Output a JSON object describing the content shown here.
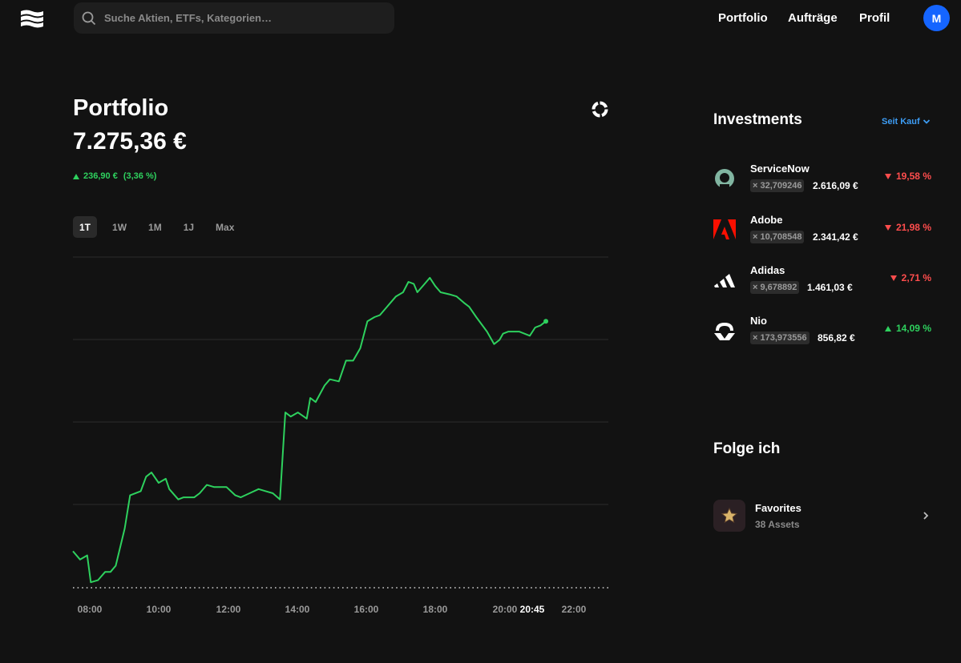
{
  "header": {
    "search_placeholder": "Suche Aktien, ETFs, Kategorien…",
    "nav": [
      "Portfolio",
      "Aufträge",
      "Profil"
    ],
    "avatar_initial": "M"
  },
  "portfolio": {
    "title": "Portfolio",
    "value": "7.275,36 €",
    "change_abs": "236,90 €",
    "change_pct": "(3,36 %)",
    "ranges": [
      "1T",
      "1W",
      "1M",
      "1J",
      "Max"
    ],
    "active_range": "1T"
  },
  "chart_data": {
    "type": "line",
    "xlabel": "",
    "ylabel": "",
    "x_ticks": [
      "08:00",
      "10:00",
      "12:00",
      "14:00",
      "16:00",
      "18:00",
      "20:00",
      "20:45",
      "22:00"
    ],
    "x_range_hours": [
      7.5,
      22.5
    ],
    "series": [
      {
        "color": "#2ed15e",
        "x": [
          7.5,
          7.7,
          7.9,
          8.0,
          8.2,
          8.4,
          8.55,
          8.7,
          8.95,
          9.1,
          9.4,
          9.55,
          9.7,
          9.9,
          10.1,
          10.2,
          10.45,
          10.6,
          10.9,
          11.05,
          11.25,
          11.45,
          11.8,
          12.05,
          12.2,
          12.45,
          12.7,
          12.9,
          13.1,
          13.3,
          13.45,
          13.6,
          13.8,
          14.05,
          14.15,
          14.3,
          14.55,
          14.7,
          14.95,
          15.15,
          15.35,
          15.55,
          15.75,
          15.95,
          16.1,
          16.3,
          16.55,
          16.75,
          16.9,
          17.05,
          17.15,
          17.35,
          17.5,
          17.65,
          17.8,
          18.05,
          18.25,
          18.45,
          18.6,
          18.8,
          19.1,
          19.3,
          19.45,
          19.55,
          19.7,
          19.8,
          20.0,
          20.3,
          20.45,
          20.6,
          20.75
        ],
        "y": [
          7103,
          7099,
          7101,
          7088,
          7089,
          7093,
          7093,
          7096,
          7114,
          7130,
          7132,
          7139,
          7141,
          7136,
          7138,
          7133,
          7128,
          7129,
          7129,
          7131,
          7135,
          7134,
          7134,
          7130,
          7129,
          7131,
          7133,
          7132,
          7131,
          7128,
          7170,
          7168,
          7170,
          7167,
          7177,
          7175,
          7183,
          7186,
          7185,
          7195,
          7195,
          7201,
          7214,
          7216,
          7217,
          7221,
          7226,
          7228,
          7233,
          7232,
          7228,
          7232,
          7235,
          7231,
          7228,
          7227,
          7226,
          7223,
          7221,
          7216,
          7209,
          7203,
          7205,
          7208,
          7209,
          7209,
          7209,
          7207,
          7211,
          7212,
          7214
        ],
        "last_point": {
          "x": 20.75,
          "y": 7214
        }
      }
    ],
    "ylim": [
      7085,
      7245
    ],
    "baseline_dotted": true,
    "grid": true
  },
  "investments": {
    "title": "Investments",
    "sort_label": "Seit Kauf",
    "holdings": [
      {
        "name": "ServiceNow",
        "qty": "× 32,709246",
        "amount": "2.616,09 €",
        "perf": "19,58 %",
        "dir": "down",
        "logo": "servicenow-logo"
      },
      {
        "name": "Adobe",
        "qty": "× 10,708548",
        "amount": "2.341,42 €",
        "perf": "21,98 %",
        "dir": "down",
        "logo": "adobe-logo"
      },
      {
        "name": "Adidas",
        "qty": "× 9,678892",
        "amount": "1.461,03 €",
        "perf": "2,71 %",
        "dir": "down",
        "logo": "adidas-logo"
      },
      {
        "name": "Nio",
        "qty": "× 173,973556",
        "amount": "856,82 €",
        "perf": "14,09 %",
        "dir": "up",
        "logo": "nio-logo"
      }
    ]
  },
  "following": {
    "title": "Folge ich",
    "lists": [
      {
        "name": "Favorites",
        "sub": "38 Assets",
        "icon": "star-icon"
      }
    ]
  },
  "colors": {
    "up": "#2ed15e",
    "down": "#ff4d4d",
    "accent": "#3d9df5",
    "avatar": "#1565ff"
  }
}
